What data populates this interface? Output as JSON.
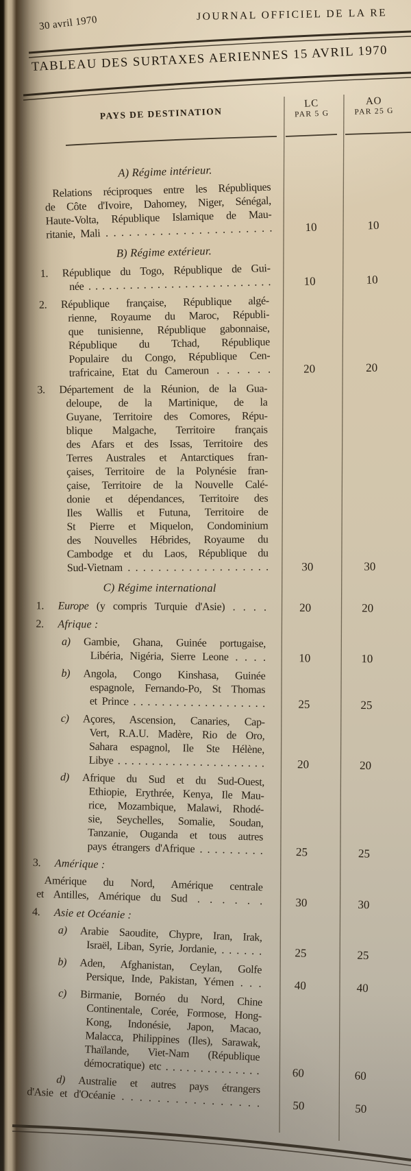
{
  "page": {
    "date": "30 avril 1970",
    "running_head": "JOURNAL OFFICIEL DE LA RE",
    "title": "TABLEAU DES SURTAXES AERIENNES 15 AVRIL 1970",
    "paper_color": "#d3c6ab",
    "ink_color": "#281f14"
  },
  "table": {
    "header": {
      "destination": "PAYS DE DESTINATION",
      "lc": [
        "LC",
        "PAR 5 G"
      ],
      "ao": [
        "AO",
        "PAR 25 G"
      ]
    },
    "rows": [
      {
        "type": "heading",
        "text": "A) Régime intérieur."
      },
      {
        "type": "para",
        "lines": [
          "Relations réciproques entre les Républiques",
          "de Côte d'Ivoire, Dahomey, Niger, Sénégal,",
          "Haute-Volta, République Islamique de Mau-",
          "ritanie, Mali . . . . . . . . . . . . . . . . . . . . . ."
        ],
        "lc": "10",
        "ao": "10"
      },
      {
        "type": "heading",
        "text": "B) Régime extérieur."
      },
      {
        "type": "entry",
        "num": "1.",
        "lines": [
          "République du Togo, République de Gui-",
          "née . . . . . . . . . . . . . . . . . . . . . . . . . . ."
        ],
        "lc": "10",
        "ao": "10"
      },
      {
        "type": "entry",
        "num": "2.",
        "lines": [
          "République française, République algé-",
          "rienne, Royaume du Maroc, Républi-",
          "que tunisienne, République gabonnaise,",
          "République du Tchad, République",
          "Populaire du Congo, République Cen-",
          "trafricaine, Etat du Cameroun . . . . . ."
        ],
        "lc": "20",
        "ao": "20"
      },
      {
        "type": "entry",
        "num": "3.",
        "lines": [
          "Département de la Réunion, de la Gua-",
          "deloupe, de la Martinique, de la",
          "Guyane, Territoire des Comores, Répu-",
          "blique Malgache, Territoire français",
          "des Afars et des Issas, Territoire des",
          "Terres Australes et Antarctiques fran-",
          "çaises, Territoire de la Polynésie fran-",
          "çaise, Territoire de la Nouvelle Calé-",
          "donie et dépendances, Territoire des",
          "Iles Wallis et Futuna, Territoire de",
          "St Pierre et Miquelon, Condominium",
          "des Nouvelles Hébrides, Royaume du",
          "Cambodge et du Laos, République du",
          "Sud-Vietnam . . . . . . . . . . . . . . . . . . ."
        ],
        "lc": "30",
        "ao": "30"
      },
      {
        "type": "heading",
        "text": "C) Régime international"
      },
      {
        "type": "entry",
        "num": "1.",
        "em": "Europe",
        "lines": [
          "(y compris Turquie d'Asie) . . . ."
        ],
        "lc": "20",
        "ao": "20"
      },
      {
        "type": "subhead",
        "num": "2.",
        "text": "Afrique :"
      },
      {
        "type": "entry",
        "num": "a)",
        "lines": [
          "Gambie, Ghana, Guinée portugaise,",
          "Libéria, Nigéria, Sierre Leone . . . ."
        ],
        "lc": "10",
        "ao": "10"
      },
      {
        "type": "entry",
        "num": "b)",
        "lines": [
          "Angola, Congo Kinshasa, Guinée",
          "espagnole, Fernando-Po, St Thomas",
          "et Prince . . . . . . . . . . . . . . . . . . ."
        ],
        "lc": "25",
        "ao": "25"
      },
      {
        "type": "entry",
        "num": "c)",
        "lines": [
          "Açores, Ascension, Canaries, Cap-",
          "Vert, R.A.U. Madère, Rio de Oro,",
          "Sahara espagnol, Ile Ste Hélène,",
          "Libye . . . . . . . . . . . . . . . . . . . . . ."
        ],
        "lc": "20",
        "ao": "20"
      },
      {
        "type": "entry",
        "num": "d)",
        "lines": [
          "Afrique du Sud et du Sud-Ouest,",
          "Ethiopie, Erythrée, Kenya, Ile Mau-",
          "rice, Mozambique, Malawi, Rhodé-",
          "sie, Seychelles, Somalie, Soudan,",
          "Tanzanie, Ouganda et tous autres",
          "pays étrangers d'Afrique . . . . . . . . ."
        ],
        "lc": "25",
        "ao": "25"
      },
      {
        "type": "subhead",
        "num": "3.",
        "text": "Amérique :"
      },
      {
        "type": "para",
        "lines": [
          "Amérique du Nord, Amérique centrale",
          "et Antilles, Amérique du Sud . . . . . ."
        ],
        "lc": "30",
        "ao": "30"
      },
      {
        "type": "subhead",
        "num": "4.",
        "text": "Asie et Océanie :"
      },
      {
        "type": "entry",
        "num": "a)",
        "lines": [
          "Arabie Saoudite, Chypre, Iran, Irak,",
          "Israël, Liban, Syrie, Jordanie, . . . . . ."
        ],
        "lc": "25",
        "ao": "25"
      },
      {
        "type": "entry",
        "num": "b)",
        "lines": [
          "Aden, Afghanistan, Ceylan, Golfe",
          "Persique, Inde, Pakistan, Yémen . . ."
        ],
        "lc": "40",
        "ao": "40"
      },
      {
        "type": "entry",
        "num": "c)",
        "lines": [
          "Birmanie, Bornéo du Nord, Chine",
          "Continentale, Corée, Formose, Hong-",
          "Kong, Indonésie, Japon, Macao,",
          "Malacca, Philippines (Iles), Sarawak,",
          "Thaïlande, Viet-Nam (République",
          "démocratique) etc . . . . . . . . . . . . . ."
        ],
        "lc": "60",
        "ao": "60"
      },
      {
        "type": "entry",
        "num": "d)",
        "lines": [
          "Australie et autres pays étrangers",
          "d'Asie et d'Océanie . . . . . . . . . . . . . . . ."
        ],
        "lc": "50",
        "ao": "50"
      }
    ]
  }
}
